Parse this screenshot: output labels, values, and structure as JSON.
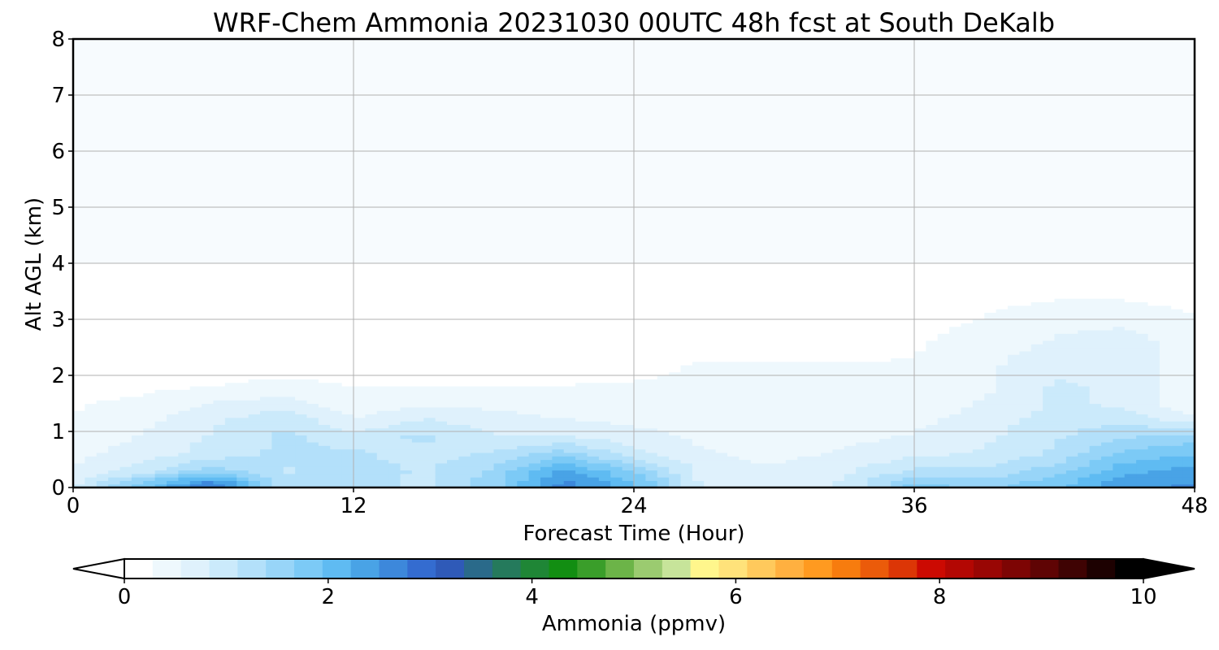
{
  "chart_data": {
    "type": "heatmap",
    "title": "WRF-Chem Ammonia  20231030 00UTC 48h fcst at South DeKalb",
    "xlabel": "Forecast Time (Hour)",
    "ylabel": "Alt AGL (km)",
    "xlim": [
      0,
      48
    ],
    "ylim": [
      0,
      8
    ],
    "xticks": [
      0,
      12,
      24,
      36,
      48
    ],
    "yticks": [
      0,
      1,
      2,
      3,
      4,
      5,
      6,
      7,
      8
    ],
    "grid": true,
    "colorbar": {
      "label": "Ammonia  (ppmv)",
      "range": [
        0,
        10
      ],
      "ticks": [
        0,
        2,
        4,
        6,
        8,
        10
      ],
      "extend": "both",
      "orientation": "horizontal",
      "placement": "bottom",
      "colors": [
        "#ffffff",
        "#eef8fd",
        "#dff1fc",
        "#cbeafb",
        "#b3e0fa",
        "#98d5f8",
        "#7ccaf6",
        "#5fbbf2",
        "#49a3e6",
        "#3d88db",
        "#346cd0",
        "#2f5ab8",
        "#2a6a8a",
        "#257a5c",
        "#1f8636",
        "#128e12",
        "#3a9e2a",
        "#6cb448",
        "#9bcb70",
        "#c7e49a",
        "#fff68c",
        "#ffe27a",
        "#ffc95c",
        "#ffb040",
        "#ff9a20",
        "#f77c0e",
        "#eb5b0a",
        "#dc3606",
        "#cc0a02",
        "#b30703",
        "#990604",
        "#7d0504",
        "#5f0404",
        "#3f0303",
        "#1d0101",
        "#000000"
      ]
    },
    "times": [
      0,
      3,
      6,
      9,
      12,
      15,
      18,
      21,
      24,
      27,
      30,
      33,
      36,
      39,
      42,
      45,
      48
    ],
    "altitudes": [
      0.05,
      0.3,
      0.6,
      0.9,
      1.2,
      1.5,
      1.8,
      2.2,
      2.6,
      3.0,
      3.5,
      4.0,
      5.0,
      8.0
    ],
    "values_ppmv": [
      [
        0.8,
        1.9,
        2.9,
        1.2,
        1.4,
        1.0,
        1.6,
        2.7,
        2.1,
        0.8,
        0.6,
        0.9,
        1.8,
        1.6,
        1.9,
        2.5,
        2.6
      ],
      [
        0.6,
        1.0,
        1.6,
        1.1,
        1.3,
        1.1,
        1.5,
        2.4,
        1.7,
        0.7,
        0.6,
        0.8,
        1.2,
        1.2,
        1.6,
        2.2,
        2.4
      ],
      [
        0.5,
        0.7,
        1.0,
        1.2,
        1.2,
        1.0,
        1.2,
        1.6,
        1.0,
        0.6,
        0.5,
        0.6,
        0.8,
        0.9,
        1.2,
        1.8,
        2.0
      ],
      [
        0.4,
        0.6,
        0.9,
        1.2,
        1.0,
        1.2,
        0.9,
        0.9,
        0.7,
        0.5,
        0.5,
        0.5,
        0.6,
        0.8,
        1.1,
        1.4,
        1.6
      ],
      [
        0.3,
        0.5,
        0.8,
        1.1,
        0.6,
        0.9,
        0.7,
        0.6,
        0.5,
        0.4,
        0.4,
        0.4,
        0.5,
        0.7,
        1.0,
        1.1,
        0.7
      ],
      [
        0.25,
        0.4,
        0.6,
        0.7,
        0.4,
        0.5,
        0.5,
        0.4,
        0.4,
        0.3,
        0.3,
        0.3,
        0.4,
        0.6,
        0.9,
        0.8,
        0.3
      ],
      [
        0.1,
        0.2,
        0.3,
        0.4,
        0.3,
        0.3,
        0.3,
        0.3,
        0.3,
        0.3,
        0.3,
        0.3,
        0.3,
        0.5,
        0.9,
        0.8,
        0.3
      ],
      [
        0.05,
        0.05,
        0.1,
        0.1,
        0.1,
        0.1,
        0.15,
        0.15,
        0.25,
        0.3,
        0.3,
        0.3,
        0.3,
        0.5,
        0.8,
        0.8,
        0.4
      ],
      [
        0.03,
        0.03,
        0.05,
        0.05,
        0.05,
        0.05,
        0.05,
        0.1,
        0.1,
        0.2,
        0.2,
        0.2,
        0.25,
        0.4,
        0.6,
        0.7,
        0.4
      ],
      [
        0.03,
        0.03,
        0.03,
        0.03,
        0.03,
        0.03,
        0.03,
        0.05,
        0.1,
        0.1,
        0.1,
        0.15,
        0.2,
        0.3,
        0.5,
        0.5,
        0.3
      ],
      [
        0.03,
        0.03,
        0.03,
        0.03,
        0.03,
        0.03,
        0.03,
        0.03,
        0.05,
        0.05,
        0.05,
        0.08,
        0.1,
        0.15,
        0.2,
        0.2,
        0.15
      ],
      [
        0.02,
        0.02,
        0.02,
        0.02,
        0.02,
        0.02,
        0.02,
        0.02,
        0.03,
        0.03,
        0.03,
        0.03,
        0.05,
        0.08,
        0.1,
        0.1,
        0.08
      ],
      [
        0.02,
        0.02,
        0.02,
        0.02,
        0.02,
        0.02,
        0.02,
        0.02,
        0.02,
        0.02,
        0.02,
        0.02,
        0.02,
        0.03,
        0.03,
        0.03,
        0.03
      ],
      [
        0.02,
        0.02,
        0.02,
        0.02,
        0.02,
        0.02,
        0.02,
        0.02,
        0.02,
        0.02,
        0.02,
        0.02,
        0.02,
        0.02,
        0.02,
        0.02,
        0.02
      ]
    ]
  }
}
